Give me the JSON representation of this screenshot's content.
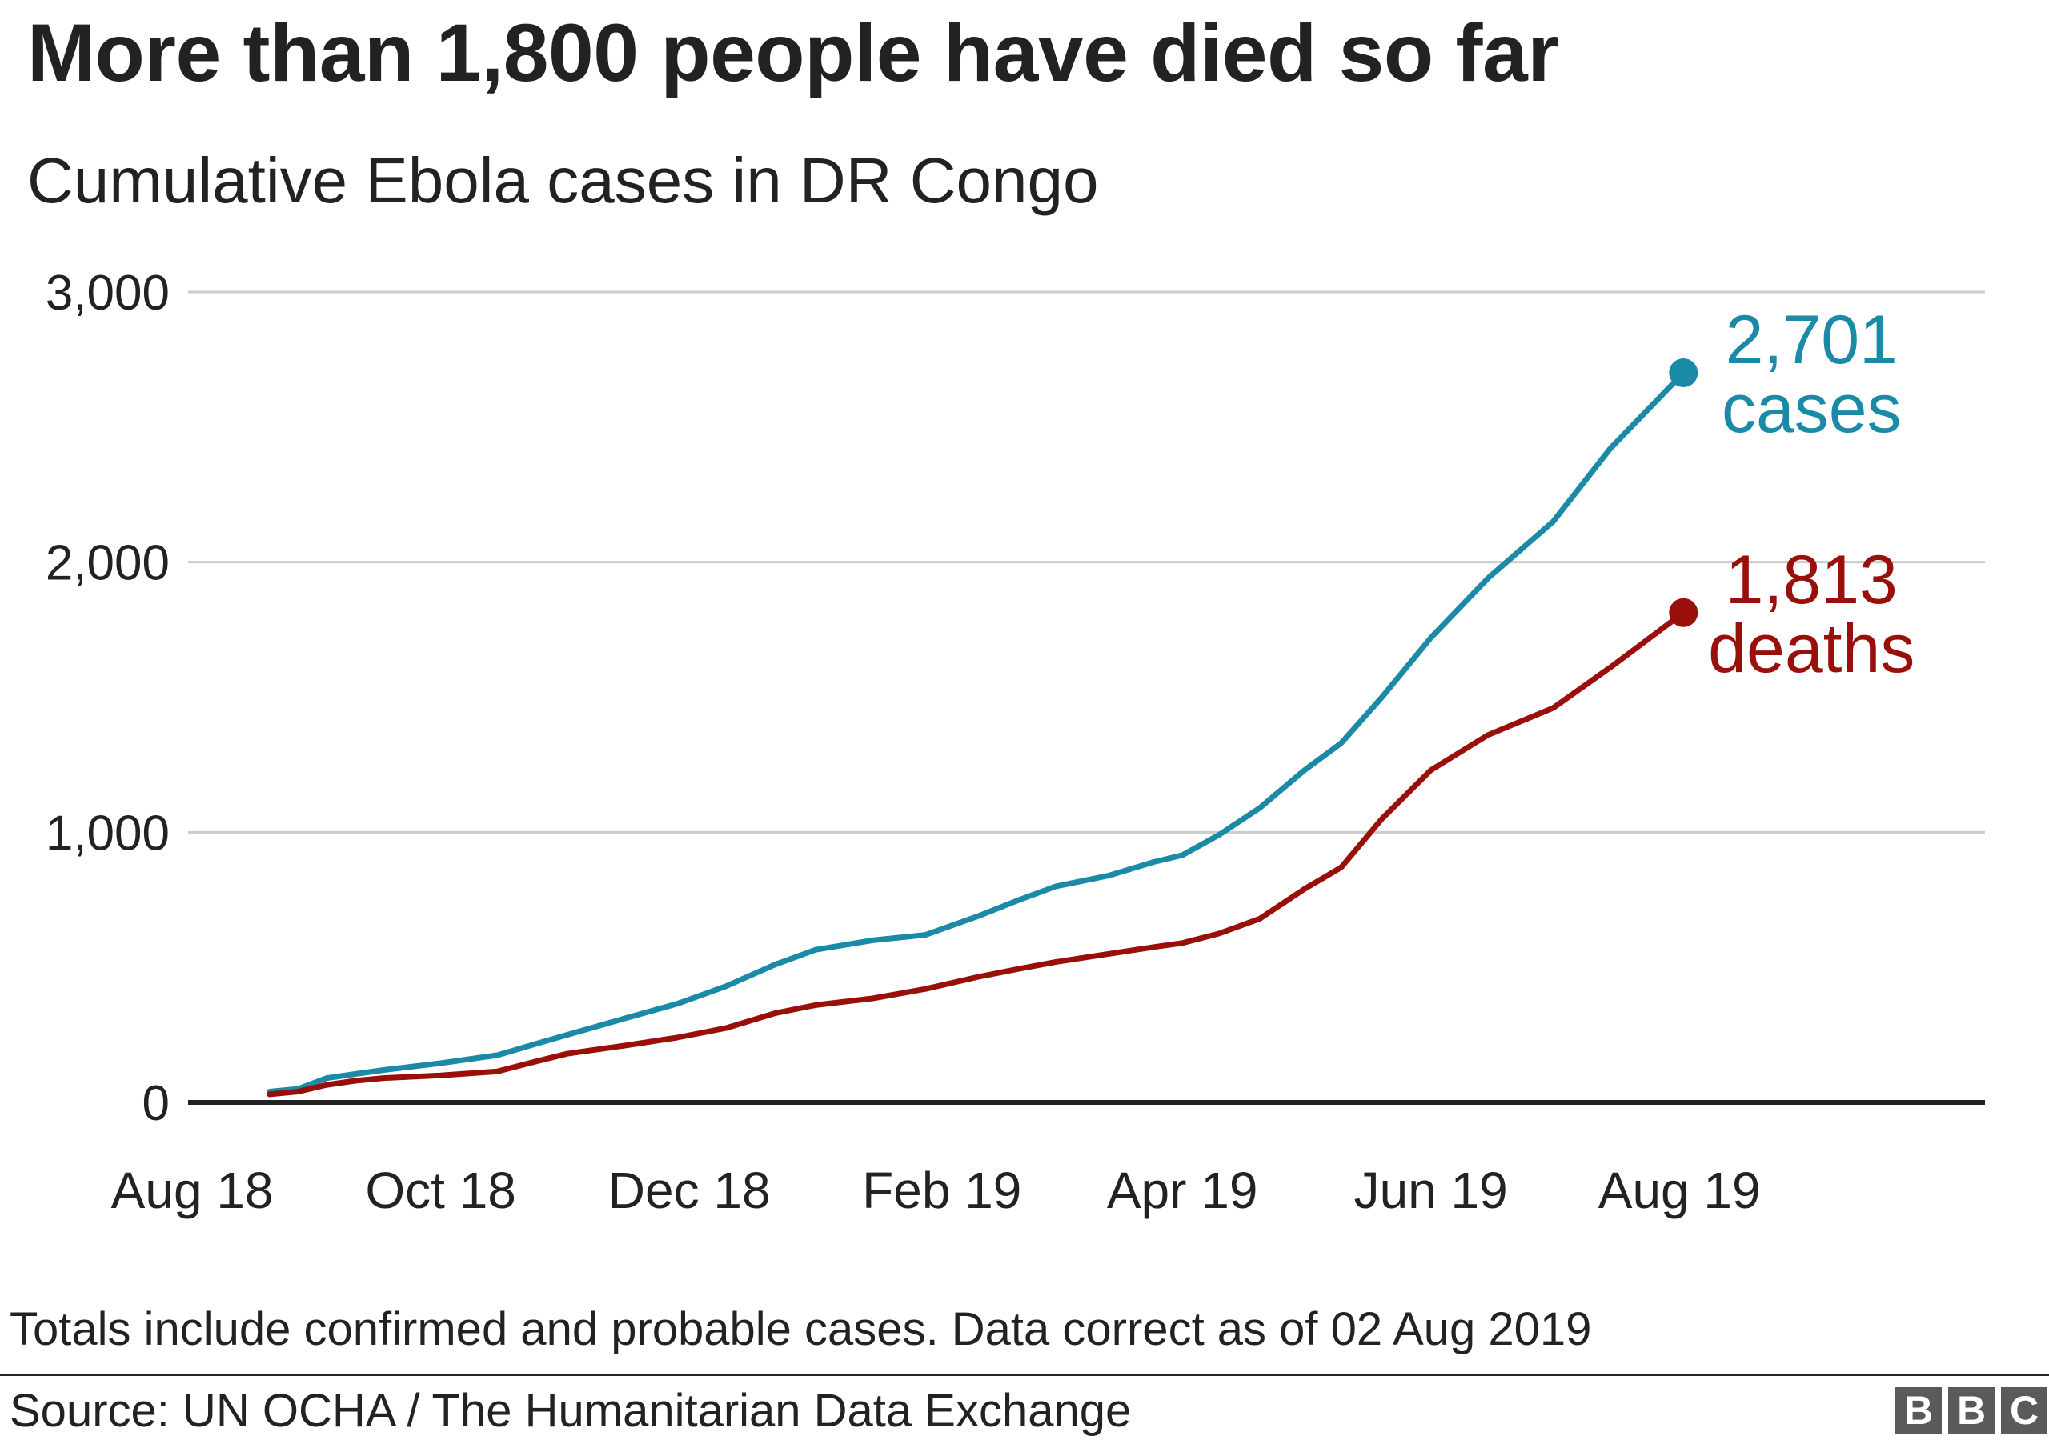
{
  "title": "More than 1,800 people have died so far",
  "subtitle": "Cumulative Ebola cases in DR Congo",
  "note": "Totals include confirmed and probable cases. Data correct as of 02 Aug 2019",
  "source": "Source: UN OCHA / The Humanitarian Data Exchange",
  "logo": [
    "B",
    "B",
    "C"
  ],
  "chart_data": {
    "type": "line",
    "title": "More than 1,800 people have died so far",
    "subtitle": "Cumulative Ebola cases in DR Congo",
    "xlabel": "",
    "ylabel": "",
    "ylim": [
      0,
      3000
    ],
    "xlim": [
      "2018-07-31",
      "2019-10-15"
    ],
    "y_ticks": [
      0,
      1000,
      2000,
      3000
    ],
    "y_tick_labels": [
      "0",
      "1,000",
      "2,000",
      "3,000"
    ],
    "x_ticks": [
      "2018-08-01",
      "2018-10-01",
      "2018-12-01",
      "2019-02-01",
      "2019-04-01",
      "2019-06-01",
      "2019-08-01"
    ],
    "x_tick_labels": [
      "Aug 18",
      "Oct 18",
      "Dec 18",
      "Feb 19",
      "Apr 19",
      "Jun 19",
      "Aug 19"
    ],
    "grid": true,
    "end_labels": [
      {
        "series": "cases",
        "value": "2,701",
        "word": "cases"
      },
      {
        "series": "deaths",
        "value": "1,813",
        "word": "deaths"
      }
    ],
    "colors": {
      "cases": "#1a8aa7",
      "deaths": "#990f0a",
      "grid": "#cccccc",
      "axis": "#222222"
    },
    "series": [
      {
        "key": "cases",
        "x": [
          "2018-08-20",
          "2018-08-27",
          "2018-09-03",
          "2018-09-10",
          "2018-09-17",
          "2018-10-01",
          "2018-10-15",
          "2018-10-24",
          "2018-11-01",
          "2018-11-15",
          "2018-11-28",
          "2018-12-10",
          "2018-12-22",
          "2019-01-01",
          "2019-01-15",
          "2019-01-28",
          "2019-02-10",
          "2019-02-20",
          "2019-03-01",
          "2019-03-14",
          "2019-03-25",
          "2019-04-01",
          "2019-04-10",
          "2019-04-20",
          "2019-05-01",
          "2019-05-10",
          "2019-05-20",
          "2019-06-01",
          "2019-06-15",
          "2019-07-01",
          "2019-07-15",
          "2019-08-02"
        ],
        "y": [
          40,
          50,
          90,
          105,
          120,
          145,
          175,
          215,
          250,
          310,
          365,
          430,
          510,
          565,
          600,
          620,
          690,
          750,
          800,
          840,
          890,
          915,
          990,
          1090,
          1230,
          1330,
          1500,
          1720,
          1940,
          2150,
          2420,
          2701
        ]
      },
      {
        "key": "deaths",
        "x": [
          "2018-08-20",
          "2018-08-27",
          "2018-09-03",
          "2018-09-10",
          "2018-09-17",
          "2018-10-01",
          "2018-10-15",
          "2018-10-24",
          "2018-11-01",
          "2018-11-15",
          "2018-11-28",
          "2018-12-10",
          "2018-12-22",
          "2019-01-01",
          "2019-01-15",
          "2019-01-28",
          "2019-02-10",
          "2019-02-20",
          "2019-03-01",
          "2019-03-14",
          "2019-03-25",
          "2019-04-01",
          "2019-04-10",
          "2019-04-20",
          "2019-05-01",
          "2019-05-10",
          "2019-05-20",
          "2019-06-01",
          "2019-06-15",
          "2019-07-01",
          "2019-07-15",
          "2019-08-02"
        ],
        "y": [
          30,
          40,
          65,
          80,
          90,
          100,
          115,
          150,
          180,
          210,
          240,
          275,
          330,
          360,
          385,
          420,
          465,
          495,
          520,
          550,
          575,
          590,
          625,
          680,
          790,
          870,
          1050,
          1230,
          1360,
          1460,
          1610,
          1813
        ]
      }
    ]
  }
}
